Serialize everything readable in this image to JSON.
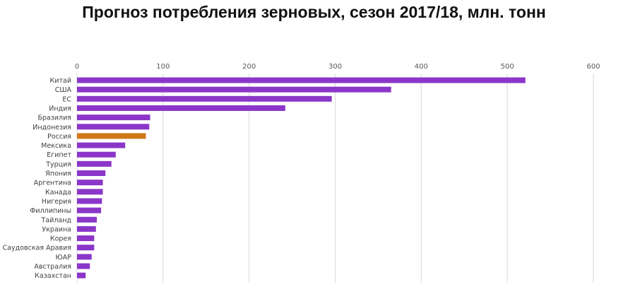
{
  "chart_data": {
    "type": "bar",
    "orientation": "horizontal",
    "title": "Прогноз потребления зерновых, сезон 2017/18, млн. тонн",
    "xlabel": "",
    "ylabel": "",
    "xlim": [
      0,
      600
    ],
    "xticks": [
      0,
      100,
      200,
      300,
      400,
      500,
      600
    ],
    "x_axis_position": "top",
    "grid": true,
    "legend": "none",
    "categories": [
      "Китай",
      "США",
      "ЕС",
      "Индия",
      "Бразилия",
      "Индонезия",
      "Россия",
      "Мексика",
      "Египет",
      "Турция",
      "Япония",
      "Аргентина",
      "Канада",
      "Нигерия",
      "Филлипины",
      "Тайланд",
      "Украина",
      "Корея",
      "Саудовская Аравия",
      "ЮАР",
      "Австралия",
      "Казахстан"
    ],
    "values": [
      521,
      365,
      296,
      242,
      85,
      84,
      80,
      56,
      45,
      40,
      33,
      30,
      30,
      29,
      28,
      23,
      22,
      20,
      20,
      17,
      15,
      10
    ],
    "colors": {
      "default": "#8B36C9",
      "highlight": "#D07718",
      "highlight_category": "Россия",
      "grid": "#D9D9D9"
    }
  }
}
